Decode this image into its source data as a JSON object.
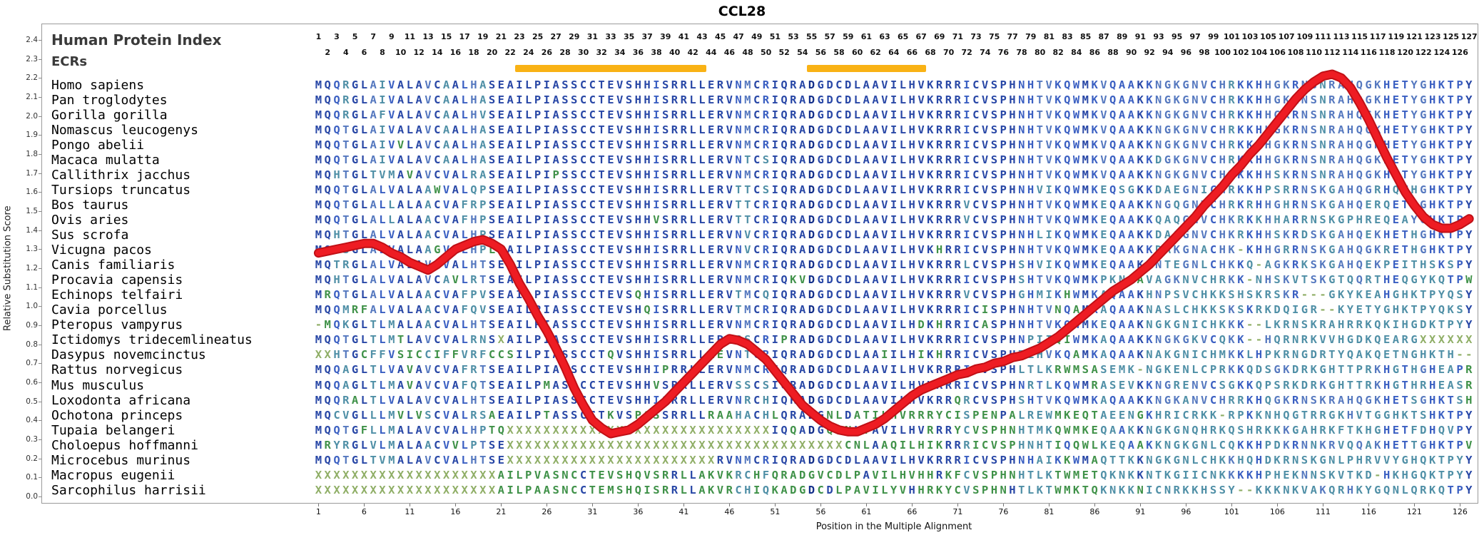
{
  "title": "CCL28",
  "header": {
    "human_protein_index_label": "Human Protein Index",
    "ecrs_label": "ECRs"
  },
  "axes": {
    "y_label": "Relative Substitution Score",
    "x_label": "Position in the Multiple Alignment",
    "y_ticks": [
      "2.4",
      "2.3",
      "2.2",
      "2.1",
      "2.0",
      "1.9",
      "1.8",
      "1.7",
      "1.6",
      "1.5",
      "1.4",
      "1.3",
      "1.2",
      "1.1",
      "1.0",
      "0.9",
      "0.8",
      "0.7",
      "0.6",
      "0.5",
      "0.4",
      "0.3",
      "0.2",
      "0.1",
      "0.0"
    ],
    "x_ticks": [
      1,
      6,
      11,
      16,
      21,
      26,
      31,
      36,
      41,
      46,
      51,
      56,
      61,
      66,
      71,
      76,
      81,
      86,
      91,
      96,
      101,
      106,
      111,
      116,
      121,
      126
    ],
    "y_min": 0.0,
    "y_max": 2.4
  },
  "ecr_regions": [
    [
      23,
      43
    ],
    [
      55,
      67
    ]
  ],
  "colors": {
    "red_line": "#ee1c23",
    "red_line_edge": "#c01016",
    "ecr_bar": "#F9B215",
    "letters": {
      "conserved_dark": "#132f8a",
      "conserved": "#2847a6",
      "majority": "#3a5fc2",
      "minor": "#5578bf",
      "mismatch_green": "#3f9148",
      "mismatch_teal": "#4f8fa6",
      "unknown": "#8fae66"
    }
  },
  "alignment": {
    "length": 127,
    "species": [
      {
        "name": "Homo sapiens",
        "seq": "MQQRGLAIVALAVCAALHASEAILPIASSCCTEVSHHISRRLLERVNMCRIQRADGDCDLAAVILHVKRRRICVSPHNHTVKQWMKVQAAKKNGKGNVCHRKKHHGKRNSNRAHQGKHETYGHKTPY"
      },
      {
        "name": "Pan troglodytes",
        "seq": "MQQRGLAIVALAVCAALHASEAILPIASSCCTEVSHHISRRLLERVNMCRIQRADGDCDLAAVILHVKRRRICVSPHNHTVKQWMKVQAAKKNGKGNVCHRKKHHGKRNSNRAHQGKHETYGHKTPY"
      },
      {
        "name": "Gorilla gorilla",
        "seq": "MQQRGLAFVALAVCAALHVSEAILPIASSCCTEVSHHISRRLLERVNMCRIQRADGDCDLAAVILHVKRRRICVSPHNHTVKQWMKVQAAKKNGKGNVCHRKKHHGKRNSNRAHQGKHETYGHKTPY"
      },
      {
        "name": "Nomascus leucogenys",
        "seq": "MQQTGLAIVALAVCAALHASEAILPIASSCCTEVSHHISRRLLERVNMCRIQRADGDCDLAAVILHVKRRRICVSPHNHTVKQWMKVQAAKKNGKGNVCHRKKHHGKRNSNRAHQGKHETYGHKTPY"
      },
      {
        "name": "Pongo abelii",
        "seq": "MQQTGLAIVVLAVCAALHASEAILPIASSCCTEVSHHISRRLLERVNMCRIQRADGDCDLAAVILHVKRRRICVSPHNHTVKQWMKVQAAKKNGKGNVCHRKKHHGKRNSNRAHQGKHETYGHKTPY"
      },
      {
        "name": "Macaca mulatta",
        "seq": "MQQTGLAIVALAVCAALHASEAILPIASSCCTEVSHHISRRLLERVNTCSIQRADGDCDLAAVILHVKRRRICVSPHNHTVKQWMKVQAAKKDGKGNVCHRKKHHGKRNSNRAHQGKHETYGHKTPY"
      },
      {
        "name": "Callithrix jacchus",
        "seq": "MQHTGLTVMAVAVCVALRASEAILPIPSSCCTEVSHHISRRLLERVNMCRIQRADGDCDLAAVILHVKRRRICVSPHNHTVKQWMKVQAAKKNGKGNVCHRKKHHSKRNSNRAHQGKHETYGHKTPY"
      },
      {
        "name": "Tursiops truncatus",
        "seq": "MQQTGLALVALAAWVALQPSEAILPIASSCCTEVSHHISRRLLERVTTCSIQRADGDCDLAAVILHVKRRRICVSPHNHVIKQWMKEQSGKKDAEGNICHRKKHPSRRNSKGAHQGRHQTHGHKTPY"
      },
      {
        "name": "Bos taurus",
        "seq": "MQQTGLALLALAACVAFRPSEAILPIASSCCTEVSHHISRRLLERVTTCRIQRADGDCDLAAVILHVKRRRVCVSPHNHTVKQWMKEQAAKKNGQGNVCHRKRHHGHRNSKGAHQERQETHGHKTPY"
      },
      {
        "name": "Ovis aries",
        "seq": "MQQTGLALLALAACVAFHPSEAILPIASSCCTEVSHHVSRRLLERVTTCRIQRADGDCDLAAVILHVKRRRVCVSPHNHTVKQWMKEQAAKKQAQGNVCHKRKKHHARRNSKGPHREQEAYGHKTPY"
      },
      {
        "name": "Sus scrofa",
        "seq": "MQHTGLALVALAACVALHPSEAILPIASSCCTEVSHHISRRLLERVNVCRIQRADGDCDLAAVILHVKRRRICVSPHNHLIKQWMKEQAAKKDAQGNVCHKRKHHSKRDSKGAHQEKHETHGHKTPY"
      },
      {
        "name": "Vicugna pacos",
        "seq": "MQLSGLALVALAAGVALHPLEAILPIASSCCTEVSHHISRRLLERVNVCRIQRADGDCDLAAVILHVKHRRICVSPHNHTVKQWMKEQAAKKDAKGNACHK-KHHGRRNSKGAHQGKRETHGHKTPY"
      },
      {
        "name": "Canis familiaris",
        "seq": "MQTRGLALVALAVCVALHTSEAILPIASSCCTEVSHHISRRLLERVNMCRIQRADGDCDLAAVILHVKRRRLCVSPHSHVIKQWMKEQAAKKNTEGNLCHKKQ-AGKRKSKGAHQEKPEITHSKSPY"
      },
      {
        "name": "Procavia capensis",
        "seq": "MQHTGLALVALAVCAVLRTSEAILPIASSCCTEVSHHISRRLLERVNMCRIQKVDGDCDLAAVILHVKRRRICVSPHSHTVKQWMKPKNCAVAGKNVCHRKK-NHSKVTSKGTQQRTHEQGYKQTPW"
      },
      {
        "name": "Echinops telfairi",
        "seq": "MRQTGLALVALAACVAFPVSEAILPIASSCCTEVSQHISRRLLERVTMCQIQRADGDCDLAAVILHVKRRRVCVSPHGHMIKHWMKAQAAKHNPSVCHKKSHSKRSKR---GKYKEAHGHKTPYQSY"
      },
      {
        "name": "Cavia porcellus",
        "seq": "MQQMRFALVALAACVAFQVSEAILPIASSCCTEVSHQISRRLLERVTMCRIQRADGDCDLAAVILHVKRRRICISPHNHTVNQAMKAQAAKNASLCHKKSKSKRKDQIGR--KYETYGHKTPYQKSY"
      },
      {
        "name": "Pteropus vampyrus",
        "seq": "-MQKGLTLMALAACVALHTSEAILPIASSCCTEVSHHISRRLLERVNMCRIQRADGDCDLAAVILHDKHRRICASPHNHTVKQWMKEQAAKNGKGNICHKKK--LKRNSKRAHRRKQKIHGDKTPYY"
      },
      {
        "name": "Ictidomys tridecemlineatus",
        "seq": "MQQTGLTLMTLAVCVALRNSXAILPIASSCCTEVSHHISRRLLERVSSCRIPRADGDCDLAAVILHVKRRRICVSPHNPIIQIWMKAQAAKKNGKGKVCQKK--HQRNRKVVHGDKQEARGXXXXXX"
      },
      {
        "name": "Dasypus novemcinctus",
        "seq": "XXHTGCFFVSICCIFFVRFCCSILPIASSCCTQVSHHISRRLLAEVNTCRIQRADGDCDLAAIILHIKHRRICVSPHTLHVKQAMKAQAAKNAKGNICHMKKLHPKRNGDRTYQAKQETNGHKTH--"
      },
      {
        "name": "Rattus norvegicus",
        "seq": "MQQAGLTLVAVAVCVAFRTSEAILPIASSCCTEVSHHIPRRLLERVNMCRIQRADGDCDLAAVILHVKRRRICVSPHLTLKRWMSASEMK-NGKENLCPRKKQDSGKDRKGHTTPRKHGTHGHEAPR"
      },
      {
        "name": "Mus musculus",
        "seq": "MQQAGLTLMAVAVCVAFQTSEAILPMASSCCTEVSHHVSRRLLERVSSCSIQRADGDCDLAAVILHVKRRRICVSPHNRTLKQWMRASEVKKNGRENVCSGKKQPSRKDRKGHTTRKHGTHRHEASR"
      },
      {
        "name": "Loxodonta africana",
        "seq": "MQQRALTLVALAVCVALHTSEAILPIASSCCTEVSHHISRRLLERVNRCHIQRADGDCDLAAVILHVKRRQRCVSPHSHTVKQWMKAQAAKKNGKANVCHRRKHQGKRNSKRAHQGKHETSGHKTSH"
      },
      {
        "name": "Ochotona princeps",
        "seq": "MQCVGLLLMVLVSCVALRSAEAILPTASSCCTKVSPQSSRRLLRAAHACHLQRADGNLDATILHVRRRYCISPENPALREWMKEQTAEENGKHRICRKK-RPKKNHQGTRRGKHVTGGHKTSHKTPY"
      },
      {
        "name": "Tupaia belangeri",
        "seq": "MQQTGFLLMALAVCVALHPTQXXXXXXXXXXXXXXXXXXXXXXXXXXXXXIQQADGQCNLTAVILHVRRRYCVSPHNHTMKQWMKEQAAKKNGKGNQHRKQSHRKKKGAHRKFTKHGHETFDHQVPY"
      },
      {
        "name": "Choloepus hoffmanni",
        "seq": "MRYRGLVLMALAACVVLPTSEXXXXXXXXXXXXXXXXXXXXXXXXXXXXXXXXXXXXXCNLAAQILHIKRRRICVSPHNHTIQQWLKEQAAKKNGKGNLCQKKHPDKRNNKRVQQAKHETTGHKTPV"
      },
      {
        "name": "Microcebus murinus",
        "seq": "MQQTGLTVMALAVCVALHTSEXXXXXXXXXXXXXXXXXXXXXXXRVNMCRIQRADGDCDLAAVILHVKRRRICVSPHNHAIKKWMAQTTKKNGKGNLCHKKHQHDKRNSKGNLPHRVVYGHQKTPYY"
      },
      {
        "name": "Macropus eugenii",
        "seq": "XXXXXXXXXXXXXXXXXXXXAILPVASNCCTEVSHQVSRRLLAKVKRCHFQRADGVCDLPAVILHVHHRKFCVSPHNHTLKTWMETQKNKKNTKGIICNKKKKHPHEKNNSKVTKD-HKHGQKTPYY"
      },
      {
        "name": "Sarcophilus harrisii",
        "seq": "XXXXXXXXXXXXXXXXXXXXAILPAASNCCTEMSHQISRRLLAKVRCHIQKADGDCDLPAVILYVHHRKYCVSPHNHTLKTWMKTQKNKKNICNRKKHSSY--KKKNKVAKQRHKYGQNLQRKQTPY"
      }
    ]
  },
  "chart_data": {
    "type": "line",
    "title": "CCL28",
    "xlabel": "Position in the Multiple Alignment",
    "ylabel": "Relative Substitution Score",
    "ylim": [
      0,
      2.4
    ],
    "x_start": 1,
    "x_step": 1,
    "line_color": "#ee1c23",
    "values": [
      1.28,
      1.29,
      1.3,
      1.31,
      1.32,
      1.33,
      1.33,
      1.31,
      1.28,
      1.26,
      1.23,
      1.21,
      1.19,
      1.22,
      1.26,
      1.3,
      1.32,
      1.34,
      1.35,
      1.33,
      1.3,
      1.22,
      1.12,
      1.04,
      0.95,
      0.87,
      0.78,
      0.68,
      0.57,
      0.48,
      0.4,
      0.36,
      0.33,
      0.34,
      0.35,
      0.38,
      0.42,
      0.46,
      0.5,
      0.55,
      0.6,
      0.65,
      0.7,
      0.75,
      0.8,
      0.83,
      0.82,
      0.8,
      0.76,
      0.72,
      0.66,
      0.6,
      0.54,
      0.48,
      0.44,
      0.4,
      0.37,
      0.35,
      0.34,
      0.34,
      0.36,
      0.38,
      0.41,
      0.45,
      0.49,
      0.53,
      0.56,
      0.58,
      0.6,
      0.62,
      0.64,
      0.65,
      0.67,
      0.68,
      0.7,
      0.71,
      0.73,
      0.74,
      0.76,
      0.78,
      0.81,
      0.84,
      0.88,
      0.92,
      0.96,
      1.0,
      1.04,
      1.08,
      1.11,
      1.14,
      1.18,
      1.22,
      1.27,
      1.32,
      1.37,
      1.42,
      1.47,
      1.53,
      1.58,
      1.63,
      1.69,
      1.74,
      1.8,
      1.85,
      1.91,
      1.97,
      2.03,
      2.09,
      2.14,
      2.18,
      2.21,
      2.22,
      2.2,
      2.15,
      2.07,
      1.98,
      1.88,
      1.78,
      1.69,
      1.6,
      1.53,
      1.47,
      1.43,
      1.41,
      1.41,
      1.43,
      1.46
    ]
  }
}
